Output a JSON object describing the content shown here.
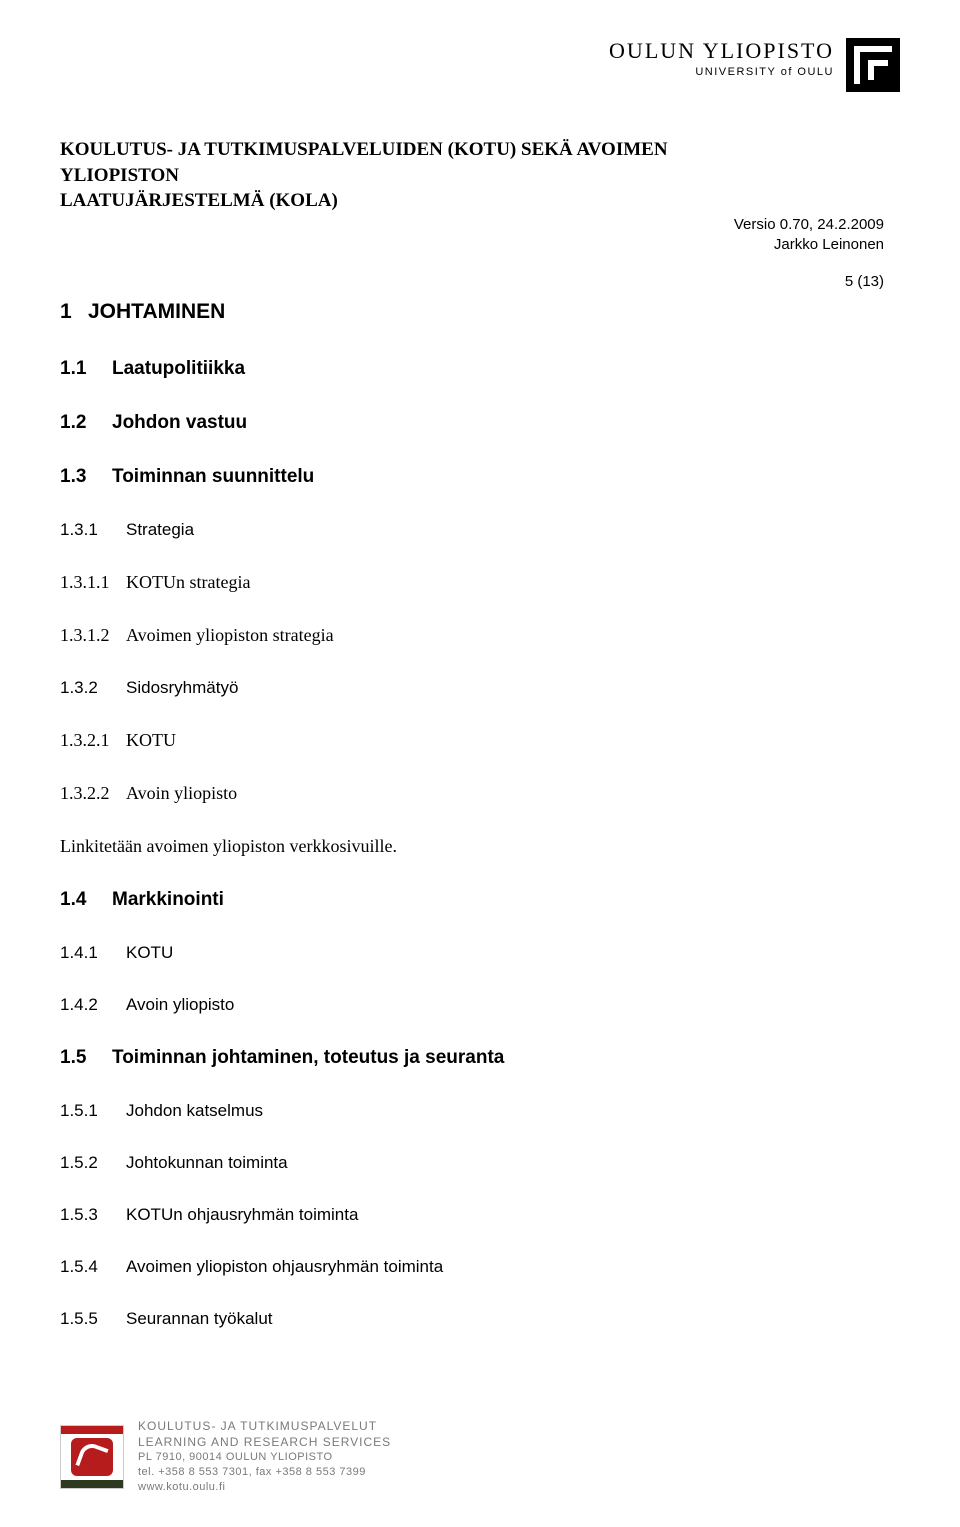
{
  "header": {
    "uni_main": "OULUN YLIOPISTO",
    "uni_sub": "UNIVERSITY of OULU"
  },
  "doc_title": {
    "line1": "KOULUTUS- JA TUTKIMUSPALVELUIDEN (KOTU) SEKÄ AVOIMEN YLIOPISTON",
    "line2": "LAATUJÄRJESTELMÄ (KOLA)"
  },
  "meta": {
    "version_line": "Versio 0.70, 24.2.2009",
    "author_line": "Jarkko Leinonen",
    "page_counter": "5 (13)"
  },
  "sections": {
    "h1": {
      "num": "1",
      "title": "JOHTAMINEN"
    },
    "h2_1": {
      "num": "1.1",
      "title": "Laatupolitiikka"
    },
    "h2_2": {
      "num": "1.2",
      "title": "Johdon vastuu"
    },
    "h2_3": {
      "num": "1.3",
      "title": "Toiminnan suunnittelu"
    },
    "h3_31": {
      "num": "1.3.1",
      "title": "Strategia"
    },
    "h4_311": {
      "num": "1.3.1.1",
      "title": "KOTUn strategia"
    },
    "h4_312": {
      "num": "1.3.1.2",
      "title": "Avoimen yliopiston strategia"
    },
    "h3_32": {
      "num": "1.3.2",
      "title": "Sidosryhmätyö"
    },
    "h4_321": {
      "num": "1.3.2.1",
      "title": "KOTU"
    },
    "h4_322": {
      "num": "1.3.2.2",
      "title": "Avoin yliopisto"
    },
    "para_link": "Linkitetään avoimen yliopiston verkkosivuille.",
    "h2_4": {
      "num": "1.4",
      "title": "Markkinointi"
    },
    "h3_41": {
      "num": "1.4.1",
      "title": "KOTU"
    },
    "h3_42": {
      "num": "1.4.2",
      "title": "Avoin yliopisto"
    },
    "h2_5": {
      "num": "1.5",
      "title": "Toiminnan johtaminen, toteutus ja seuranta"
    },
    "h3_51": {
      "num": "1.5.1",
      "title": "Johdon katselmus"
    },
    "h3_52": {
      "num": "1.5.2",
      "title": "Johtokunnan toiminta"
    },
    "h3_53": {
      "num": "1.5.3",
      "title": "KOTUn ohjausryhmän toiminta"
    },
    "h3_54": {
      "num": "1.5.4",
      "title": "Avoimen yliopiston ohjausryhmän toiminta"
    },
    "h3_55": {
      "num": "1.5.5",
      "title": "Seurannan työkalut"
    }
  },
  "footer": {
    "line1": "KOULUTUS- JA TUTKIMUSPALVELUT",
    "line2": "LEARNING AND RESEARCH SERVICES",
    "line3": "PL 7910, 90014 OULUN YLIOPISTO",
    "line4": "tel. +358 8 553 7301, fax +358 8 553 7399",
    "line5": "www.kotu.oulu.fi"
  },
  "colors": {
    "text": "#000000",
    "footer_text": "#7a7a7a",
    "background": "#ffffff",
    "logo_red": "#b71c1c",
    "logo_green": "#2e3a1f"
  },
  "typography": {
    "doc_title_fontsize": 19,
    "h1_fontsize": 21,
    "h2_fontsize": 19,
    "h3_fontsize": 17,
    "h4_fontsize": 18,
    "body_fontsize": 18,
    "meta_fontsize": 15,
    "footer_fontsize": 11
  }
}
